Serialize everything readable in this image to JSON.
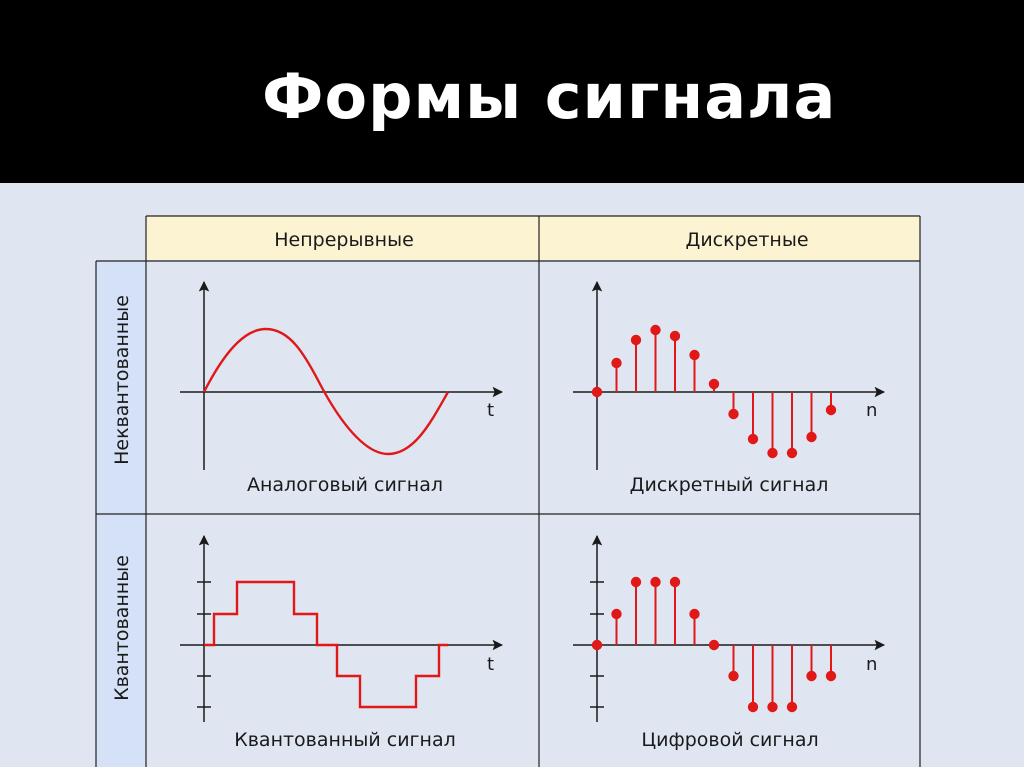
{
  "slide": {
    "title": "Формы сигнала"
  },
  "table": {
    "columns": [
      "Непрерывные",
      "Дискретные"
    ],
    "rows": [
      "Неквантованные",
      "Квантованные"
    ]
  },
  "panels": {
    "analog": {
      "caption": "Аналоговый сигнал",
      "axis_label": "t"
    },
    "discrete": {
      "caption": "Дискретный сигнал",
      "axis_label": "n"
    },
    "quantized": {
      "caption": "Квантованный сигнал",
      "axis_label": "t"
    },
    "digital": {
      "caption": "Цифровой сигнал",
      "axis_label": "n"
    }
  },
  "colors": {
    "signal": "#e01818",
    "header_fill": "#fcf3d3",
    "row_header_fill": "#d4e1f7",
    "background": "#dfe6f1"
  },
  "icons": {
    "axis_arrow": "arrowhead"
  }
}
